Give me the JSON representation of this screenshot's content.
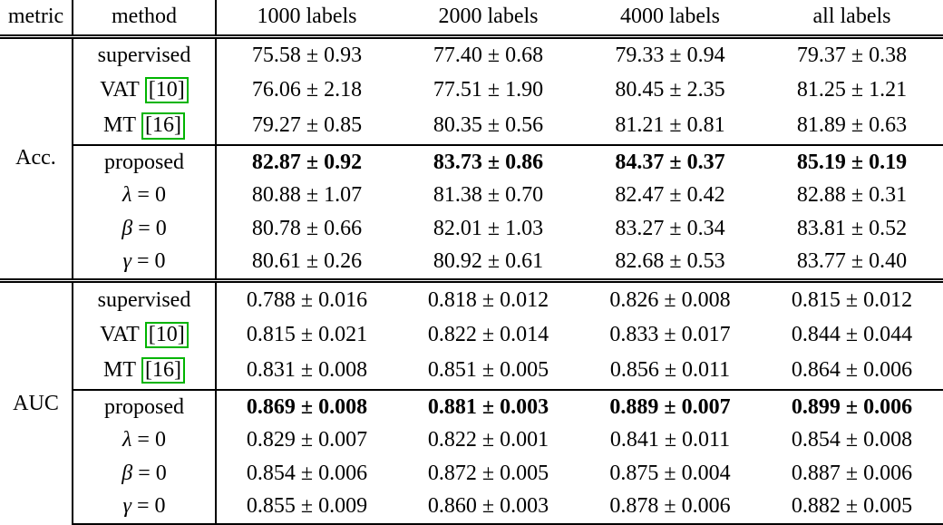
{
  "table": {
    "headers": [
      "metric",
      "method",
      "1000 labels",
      "2000 labels",
      "4000 labels",
      "all labels"
    ],
    "citation_box_color": "#00b400",
    "sections": [
      {
        "metric": "Acc.",
        "rows": [
          {
            "method": "supervised",
            "cite": "",
            "math": false,
            "bold": false,
            "rule_above": false,
            "values": [
              "75.58 ± 0.93",
              "77.40 ± 0.68",
              "79.33 ± 0.94",
              "79.37 ± 0.38"
            ]
          },
          {
            "method": "VAT",
            "cite": "[10]",
            "math": false,
            "bold": false,
            "rule_above": false,
            "values": [
              "76.06 ± 2.18",
              "77.51 ± 1.90",
              "80.45 ± 2.35",
              "81.25 ± 1.21"
            ]
          },
          {
            "method": "MT",
            "cite": "[16]",
            "math": false,
            "bold": false,
            "rule_above": false,
            "values": [
              "79.27 ± 0.85",
              "80.35 ± 0.56",
              "81.21 ± 0.81",
              "81.89 ± 0.63"
            ]
          },
          {
            "method": "proposed",
            "cite": "",
            "math": false,
            "bold": true,
            "rule_above": true,
            "values": [
              "82.87 ± 0.92",
              "83.73 ± 0.86",
              "84.37 ± 0.37",
              "85.19 ± 0.19"
            ]
          },
          {
            "method": "λ = 0",
            "cite": "",
            "math": true,
            "bold": false,
            "rule_above": false,
            "values": [
              "80.88 ± 1.07",
              "81.38 ± 0.70",
              "82.47 ± 0.42",
              "82.88 ± 0.31"
            ]
          },
          {
            "method": "β = 0",
            "cite": "",
            "math": true,
            "bold": false,
            "rule_above": false,
            "values": [
              "80.78 ± 0.66",
              "82.01 ± 1.03",
              "83.27 ± 0.34",
              "83.81 ± 0.52"
            ]
          },
          {
            "method": "γ = 0",
            "cite": "",
            "math": true,
            "bold": false,
            "rule_above": false,
            "values": [
              "80.61 ± 0.26",
              "80.92 ± 0.61",
              "82.68 ± 0.53",
              "83.77 ± 0.40"
            ]
          }
        ]
      },
      {
        "metric": "AUC",
        "rows": [
          {
            "method": "supervised",
            "cite": "",
            "math": false,
            "bold": false,
            "rule_above": false,
            "values": [
              "0.788 ± 0.016",
              "0.818 ± 0.012",
              "0.826 ± 0.008",
              "0.815 ± 0.012"
            ]
          },
          {
            "method": "VAT",
            "cite": "[10]",
            "math": false,
            "bold": false,
            "rule_above": false,
            "values": [
              "0.815 ± 0.021",
              "0.822 ± 0.014",
              "0.833 ± 0.017",
              "0.844 ± 0.044"
            ]
          },
          {
            "method": "MT",
            "cite": "[16]",
            "math": false,
            "bold": false,
            "rule_above": false,
            "values": [
              "0.831 ± 0.008",
              "0.851 ± 0.005",
              "0.856 ± 0.011",
              "0.864 ± 0.006"
            ]
          },
          {
            "method": "proposed",
            "cite": "",
            "math": false,
            "bold": true,
            "rule_above": true,
            "values": [
              "0.869 ± 0.008",
              "0.881 ± 0.003",
              "0.889 ± 0.007",
              "0.899 ± 0.006"
            ]
          },
          {
            "method": "λ = 0",
            "cite": "",
            "math": true,
            "bold": false,
            "rule_above": false,
            "values": [
              "0.829 ± 0.007",
              "0.822 ± 0.001",
              "0.841 ± 0.011",
              "0.854 ± 0.008"
            ]
          },
          {
            "method": "β = 0",
            "cite": "",
            "math": true,
            "bold": false,
            "rule_above": false,
            "values": [
              "0.854 ± 0.006",
              "0.872 ± 0.005",
              "0.875 ± 0.004",
              "0.887 ± 0.006"
            ]
          },
          {
            "method": "γ = 0",
            "cite": "",
            "math": true,
            "bold": false,
            "rule_above": false,
            "values": [
              "0.855 ± 0.009",
              "0.860 ± 0.003",
              "0.878 ± 0.006",
              "0.882 ± 0.005"
            ]
          }
        ]
      }
    ]
  }
}
